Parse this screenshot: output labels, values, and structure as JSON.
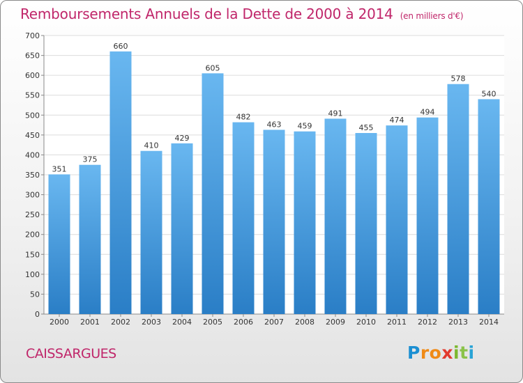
{
  "header": {
    "title": "Remboursements Annuels de la Dette de 2000 à 2014",
    "subtitle": "(en milliers d'€)"
  },
  "footer": {
    "commune": "CAISSARGUES",
    "logo_letters": [
      "P",
      "r",
      "o",
      "x",
      "i",
      "t",
      "i"
    ]
  },
  "colors": {
    "title": "#c0266a",
    "bar_top": "#69b7f0",
    "bar_bottom": "#2a7ec6"
  },
  "chart_data": {
    "type": "bar",
    "categories": [
      "2000",
      "2001",
      "2002",
      "2003",
      "2004",
      "2005",
      "2006",
      "2007",
      "2008",
      "2009",
      "2010",
      "2011",
      "2012",
      "2013",
      "2014"
    ],
    "values": [
      351,
      375,
      660,
      410,
      429,
      605,
      482,
      463,
      459,
      491,
      455,
      474,
      494,
      578,
      540
    ],
    "ylim": [
      0,
      700
    ],
    "yticks": [
      0,
      50,
      100,
      150,
      200,
      250,
      300,
      350,
      400,
      450,
      500,
      550,
      600,
      650,
      700
    ],
    "grid": true
  }
}
